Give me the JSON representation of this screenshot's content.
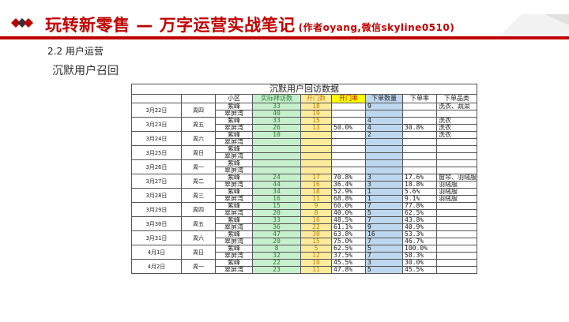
{
  "slide": {
    "title": "玩转新零售 — 万字运营实战笔记",
    "author_note": "(作者oyang,微信skyline0510)",
    "section": "2.2 用户运营",
    "subsection": "沉默用户召回"
  },
  "colors": {
    "brand": "#c00000"
  },
  "table": {
    "caption": "沉默用户回访数据",
    "headers": [
      "小区",
      "实际拜访数",
      "开门数",
      "开门率",
      "下单数量",
      "下单率",
      "下单品类"
    ],
    "days": [
      {
        "date": "3月22日",
        "dow": "周四",
        "rows": [
          [
            "紫峰",
            "33",
            "18",
            "",
            "9",
            "",
            "洗衣、蔬菜"
          ],
          [
            "翠屏湾",
            "40",
            "19",
            "",
            "",
            "",
            ""
          ]
        ]
      },
      {
        "date": "3月23日",
        "dow": "周五",
        "rows": [
          [
            "紫峰",
            "33",
            "15",
            "",
            "4",
            "",
            "洗衣"
          ],
          [
            "翠屏湾",
            "26",
            "13",
            "50.0%",
            "4",
            "30.8%",
            "洗衣"
          ]
        ]
      },
      {
        "date": "3月24日",
        "dow": "周六",
        "rows": [
          [
            "紫峰",
            "10",
            "",
            "",
            "2",
            "",
            "洗衣"
          ],
          [
            "翠屏湾",
            "",
            "",
            "",
            "",
            "",
            ""
          ]
        ]
      },
      {
        "date": "3月25日",
        "dow": "周日",
        "rows": [
          [
            "紫峰",
            "",
            "",
            "",
            "",
            "",
            ""
          ],
          [
            "翠屏湾",
            "",
            "",
            "",
            "",
            "",
            ""
          ]
        ]
      },
      {
        "date": "3月26日",
        "dow": "周一",
        "rows": [
          [
            "紫峰",
            "",
            "",
            "",
            "",
            "",
            ""
          ],
          [
            "翠屏湾",
            "",
            "",
            "",
            "",
            "",
            ""
          ]
        ]
      },
      {
        "date": "3月27日",
        "dow": "周二",
        "rows": [
          [
            "紫峰",
            "24",
            "17",
            "70.8%",
            "3",
            "17.6%",
            "窗帘、羽绒服"
          ],
          [
            "翠屏湾",
            "44",
            "16",
            "36.4%",
            "3",
            "18.8%",
            "羽绒服"
          ]
        ]
      },
      {
        "date": "3月28日",
        "dow": "周三",
        "rows": [
          [
            "紫峰",
            "34",
            "18",
            "52.9%",
            "1",
            "5.6%",
            "羽绒服"
          ],
          [
            "翠屏湾",
            "16",
            "11",
            "68.8%",
            "1",
            "9.1%",
            "羽绒服"
          ]
        ]
      },
      {
        "date": "3月29日",
        "dow": "周四",
        "rows": [
          [
            "紫峰",
            "15",
            "9",
            "60.0%",
            "7",
            "77.8%",
            ""
          ],
          [
            "翠屏湾",
            "20",
            "8",
            "40.0%",
            "5",
            "62.5%",
            ""
          ]
        ]
      },
      {
        "date": "3月30日",
        "dow": "周五",
        "rows": [
          [
            "紫峰",
            "33",
            "16",
            "48.5%",
            "7",
            "43.8%",
            ""
          ],
          [
            "翠屏湾",
            "36",
            "22",
            "61.1%",
            "9",
            "40.9%",
            ""
          ]
        ]
      },
      {
        "date": "3月31日",
        "dow": "周六",
        "rows": [
          [
            "紫峰",
            "47",
            "30",
            "63.8%",
            "16",
            "53.3%",
            ""
          ],
          [
            "翠屏湾",
            "20",
            "15",
            "75.0%",
            "7",
            "46.7%",
            ""
          ]
        ]
      },
      {
        "date": "4月1日",
        "dow": "周日",
        "rows": [
          [
            "紫峰",
            "8",
            "5",
            "62.5%",
            "5",
            "100.0%",
            ""
          ],
          [
            "翠屏湾",
            "32",
            "12",
            "37.5%",
            "7",
            "58.3%",
            ""
          ]
        ]
      },
      {
        "date": "4月2日",
        "dow": "周一",
        "rows": [
          [
            "紫峰",
            "22",
            "10",
            "45.5%",
            "3",
            "30.0%",
            ""
          ],
          [
            "翠屏湾",
            "23",
            "11",
            "47.8%",
            "5",
            "45.5%",
            ""
          ]
        ]
      }
    ]
  }
}
